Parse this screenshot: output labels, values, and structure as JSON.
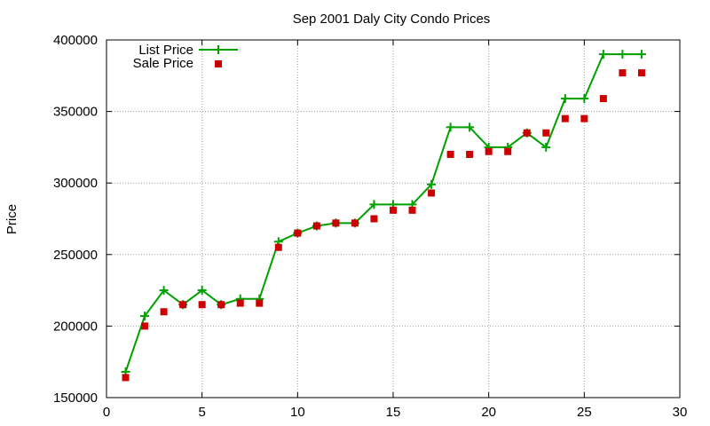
{
  "chart_data": {
    "type": "line",
    "title": "Sep 2001 Daly City Condo Prices",
    "xlabel": "",
    "ylabel": "Price",
    "xlim": [
      0,
      30
    ],
    "ylim": [
      150000,
      400000
    ],
    "x_ticks": [
      0,
      5,
      10,
      15,
      20,
      25,
      30
    ],
    "y_ticks": [
      150000,
      200000,
      250000,
      300000,
      350000,
      400000
    ],
    "grid": true,
    "legend_position": "top-left",
    "series": [
      {
        "name": "List Price",
        "style": "line-with-plus-markers",
        "color": "#00a000",
        "x": [
          1,
          2,
          3,
          4,
          5,
          6,
          7,
          8,
          9,
          10,
          11,
          12,
          13,
          14,
          15,
          16,
          17,
          18,
          19,
          20,
          21,
          22,
          23,
          24,
          25,
          26,
          27,
          28
        ],
        "values": [
          168000,
          207000,
          225000,
          215000,
          225000,
          215000,
          219000,
          219000,
          259000,
          265000,
          270000,
          272000,
          272000,
          285000,
          285000,
          285000,
          299000,
          339000,
          339000,
          325000,
          325000,
          335000,
          325000,
          359000,
          359000,
          390000,
          390000,
          390000
        ]
      },
      {
        "name": "Sale Price",
        "style": "square-markers",
        "color": "#cc0000",
        "x": [
          1,
          2,
          3,
          4,
          5,
          6,
          7,
          8,
          9,
          10,
          11,
          12,
          13,
          14,
          15,
          16,
          17,
          18,
          19,
          20,
          21,
          22,
          23,
          24,
          25,
          26,
          27,
          28
        ],
        "values": [
          164000,
          200000,
          210000,
          215000,
          215000,
          215000,
          216000,
          216000,
          255000,
          265000,
          270000,
          272000,
          272000,
          275000,
          281000,
          281000,
          293000,
          320000,
          320000,
          322000,
          322000,
          335000,
          335000,
          345000,
          345000,
          359000,
          377000,
          377000
        ]
      }
    ]
  }
}
